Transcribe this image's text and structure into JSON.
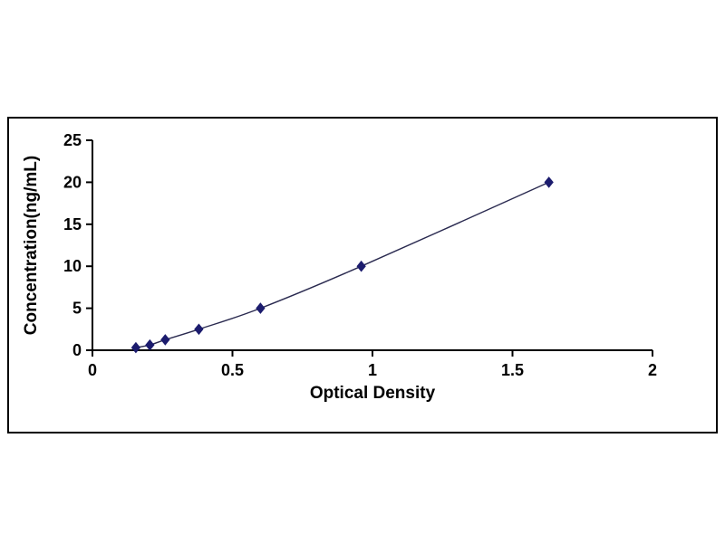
{
  "chart_data": {
    "type": "line",
    "title": "",
    "xlabel": "Optical Density",
    "ylabel": "Concentration(ng/mL)",
    "x": [
      0.155,
      0.205,
      0.26,
      0.38,
      0.6,
      0.96,
      1.63
    ],
    "y": [
      0.312,
      0.625,
      1.25,
      2.5,
      5,
      10,
      20
    ],
    "xlim": [
      0,
      2
    ],
    "ylim": [
      0,
      25
    ],
    "xticks": [
      0,
      0.5,
      1,
      1.5,
      2
    ],
    "yticks": [
      0,
      5,
      10,
      15,
      20,
      25
    ],
    "grid": false,
    "legend": "none",
    "marker": "diamond",
    "marker_color": "#1c1c6e",
    "line_color": "#2a2a50",
    "axis_color": "#000000"
  }
}
